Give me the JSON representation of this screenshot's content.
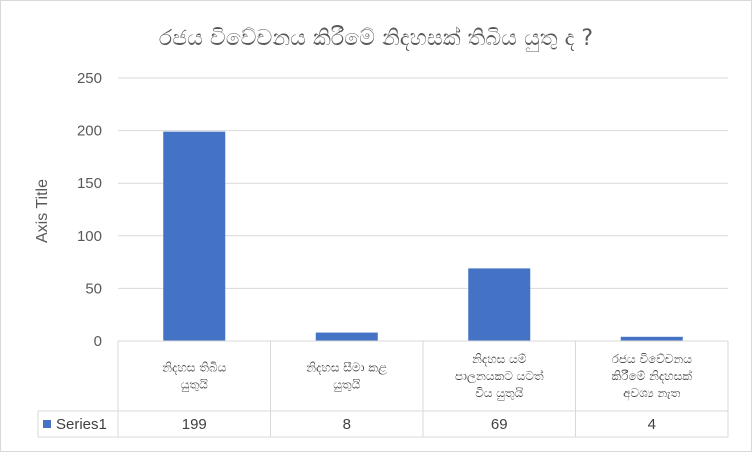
{
  "chart_data": {
    "type": "bar",
    "title": "රජය විවේචනය කිරීමේ නිදහසක් තිබිය යුතු ද ?",
    "ylabel": "Axis Title",
    "xlabel": "",
    "ylim": [
      0,
      250
    ],
    "yticks": [
      0,
      50,
      100,
      150,
      200,
      250
    ],
    "grid": true,
    "legend": "data-table",
    "categories": [
      [
        "නිදහස තිබිය",
        "යුතුයි"
      ],
      [
        "නිදහස සීමා කළ",
        "යුතුයි"
      ],
      [
        "නිදහස යම්",
        "පාලනයකට යටත්",
        "විය යුතුයි"
      ],
      [
        "රජය විවේචනය",
        "කිරීමේ නිදහසක්",
        "අවශ්‍ය නැත"
      ]
    ],
    "series": [
      {
        "name": "Series1",
        "values": [
          199,
          8,
          69,
          4
        ],
        "color": "#4472c4"
      }
    ]
  }
}
